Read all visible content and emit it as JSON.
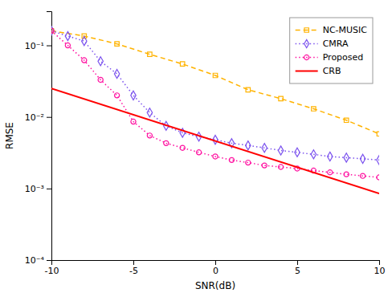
{
  "chart_data": {
    "type": "line",
    "x_label": "SNR(dB)",
    "y_label": "RMSE",
    "log": "y",
    "xlim": [
      -10,
      10
    ],
    "ylim": [
      0.0001,
      0.3
    ],
    "xticks": [
      -10,
      -5,
      0,
      5,
      10
    ],
    "yticks": [
      {
        "value": 0.0001,
        "label": "10⁻⁴"
      },
      {
        "value": 0.001,
        "label": "10⁻³"
      },
      {
        "value": 0.01,
        "label": "10⁻²"
      },
      {
        "value": 0.1,
        "label": "10⁻¹"
      }
    ],
    "grid": false,
    "legend": "upper right",
    "series": [
      {
        "name": "NC-MUSIC",
        "color": "#FFB300",
        "marker": "square",
        "line_style": "dashed",
        "x": [
          -10,
          -8,
          -6,
          -4,
          -2,
          0,
          2,
          4,
          6,
          8,
          10
        ],
        "values": [
          0.16,
          0.135,
          0.105,
          0.075,
          0.055,
          0.038,
          0.024,
          0.018,
          0.013,
          0.009,
          0.0058
        ]
      },
      {
        "name": "CMRA",
        "color": "#7B52EE",
        "marker": "diamond",
        "line_style": "dotted",
        "x": [
          -10,
          -9,
          -8,
          -7,
          -6,
          -5,
          -4,
          -3,
          -2,
          -1,
          0,
          1,
          2,
          3,
          4,
          5,
          6,
          7,
          8,
          9,
          10
        ],
        "values": [
          0.16,
          0.135,
          0.115,
          0.06,
          0.04,
          0.02,
          0.0115,
          0.0075,
          0.006,
          0.0053,
          0.0048,
          0.0043,
          0.004,
          0.0037,
          0.0034,
          0.0032,
          0.003,
          0.0028,
          0.0027,
          0.0026,
          0.0025
        ]
      },
      {
        "name": "Proposed",
        "color": "#FF10A0",
        "marker": "circle",
        "line_style": "dotted",
        "x": [
          -10,
          -9,
          -8,
          -7,
          -6,
          -5,
          -4,
          -3,
          -2,
          -1,
          0,
          1,
          2,
          3,
          4,
          5,
          6,
          7,
          8,
          9,
          10
        ],
        "values": [
          0.16,
          0.1,
          0.062,
          0.033,
          0.02,
          0.0086,
          0.0055,
          0.0043,
          0.0037,
          0.0032,
          0.0028,
          0.0025,
          0.0023,
          0.0021,
          0.002,
          0.0019,
          0.00178,
          0.00168,
          0.00158,
          0.0015,
          0.00143
        ]
      },
      {
        "name": "CRB",
        "color": "#FF0000",
        "line_style": "solid",
        "x": [
          -10,
          10
        ],
        "values": [
          0.025,
          0.00085
        ]
      }
    ]
  }
}
